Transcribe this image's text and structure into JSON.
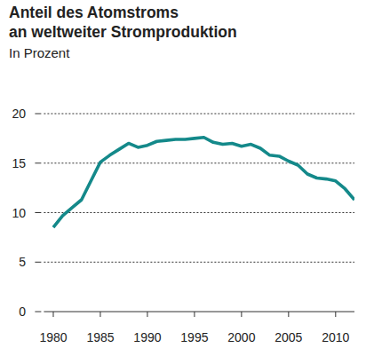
{
  "chart_data": {
    "type": "line",
    "title": "Anteil des Atomstroms an weltweiter Stromproduktion",
    "title_lines": [
      "Anteil des Atomstroms",
      "an weltweiter Stromproduktion"
    ],
    "subtitle": "In Prozent",
    "x": [
      1980,
      1981,
      1982,
      1983,
      1984,
      1985,
      1986,
      1987,
      1988,
      1989,
      1990,
      1991,
      1992,
      1993,
      1994,
      1995,
      1996,
      1997,
      1998,
      1999,
      2000,
      2001,
      2002,
      2003,
      2004,
      2005,
      2006,
      2007,
      2008,
      2009,
      2010,
      2011,
      2012
    ],
    "values": [
      8.5,
      9.7,
      10.5,
      11.3,
      13.2,
      15.1,
      15.8,
      16.4,
      17.0,
      16.6,
      16.8,
      17.2,
      17.3,
      17.4,
      17.4,
      17.5,
      17.6,
      17.1,
      16.9,
      17.0,
      16.7,
      16.9,
      16.5,
      15.8,
      15.7,
      15.2,
      14.8,
      13.9,
      13.5,
      13.4,
      13.2,
      12.4,
      11.3
    ],
    "color": "#14898a",
    "xlim": [
      1979,
      2012
    ],
    "xticks": [
      1980,
      1985,
      1990,
      1995,
      2000,
      2005,
      2010
    ],
    "ylim": [
      0,
      20
    ],
    "yticks": [
      0,
      5,
      10,
      15,
      20
    ],
    "grid": true
  }
}
